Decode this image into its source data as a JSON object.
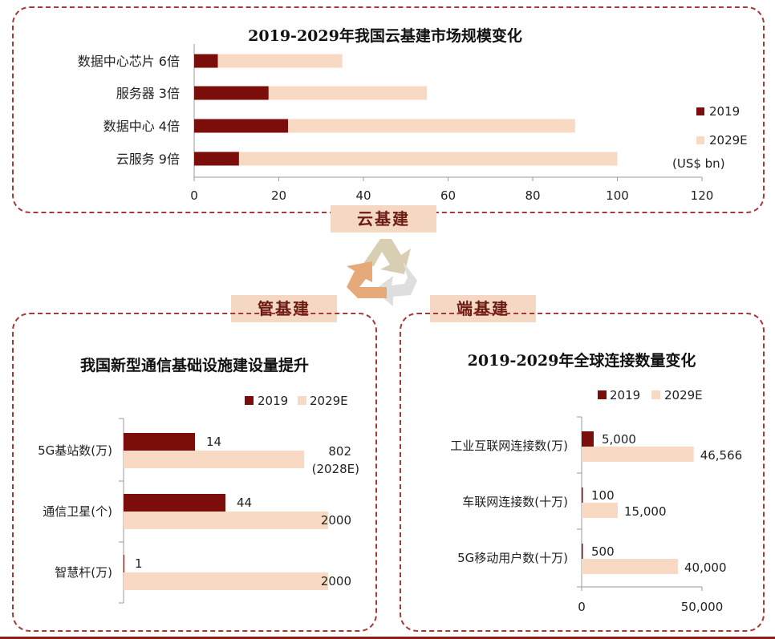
{
  "colors": {
    "c2019": "#7b0d0b",
    "c2029": "#f8d9c3",
    "border": "#a23b34",
    "tag_bg": "#f4d8c4"
  },
  "cycle": {
    "top_tag": "云基建",
    "left_tag": "管基建",
    "right_tag": "端基建",
    "icon": "recycle-arrows-icon"
  },
  "chart_data": [
    {
      "id": "cloud",
      "type": "bar",
      "orientation": "horizontal",
      "stacked": true,
      "title": "2019-2029年我国云基建市场规模变化",
      "categories": [
        "数据中心芯片  6倍",
        "服务器  3倍",
        "数据中心  4倍",
        "云服务  9倍"
      ],
      "series": [
        {
          "name": "2019",
          "values": [
            5.6,
            17.6,
            22.2,
            10.6
          ]
        },
        {
          "name": "2029E",
          "values": [
            29.4,
            37.4,
            67.8,
            89.4
          ]
        }
      ],
      "xlim": [
        0,
        120
      ],
      "xticks": [
        "0",
        "20",
        "40",
        "60",
        "80",
        "100",
        "120"
      ],
      "unit": "(US$ bn)",
      "legend": "right"
    },
    {
      "id": "pipe",
      "type": "bar",
      "orientation": "horizontal",
      "title": "我国新型通信基础设施建设量提升",
      "categories": [
        "5G基站数(万)",
        "通信卫星(个)",
        "智慧杆(万)"
      ],
      "series": [
        {
          "name": "2019",
          "values": [
            14,
            44,
            1
          ],
          "labels": [
            "14",
            "44",
            "1"
          ]
        },
        {
          "name": "2029E",
          "values": [
            802,
            2000,
            2000
          ],
          "labels": [
            "802",
            "2000",
            "2000"
          ],
          "notes": [
            "(2028E)",
            "",
            ""
          ]
        }
      ],
      "legend": "top"
    },
    {
      "id": "end",
      "type": "bar",
      "orientation": "horizontal",
      "title": "2019-2029年全球连接数量变化",
      "categories": [
        "工业互联网连接数(万)",
        "车联网连接数(十万)",
        "5G移动用户数(十万)"
      ],
      "series": [
        {
          "name": "2019",
          "values": [
            5000,
            100,
            500
          ],
          "labels": [
            "5,000",
            "100",
            "500"
          ]
        },
        {
          "name": "2029E",
          "values": [
            46566,
            15000,
            40000
          ],
          "labels": [
            "46,566",
            "15,000",
            "40,000"
          ]
        }
      ],
      "xlim": [
        0,
        50000
      ],
      "xticks": [
        "0",
        "50,000"
      ],
      "legend": "top"
    }
  ]
}
